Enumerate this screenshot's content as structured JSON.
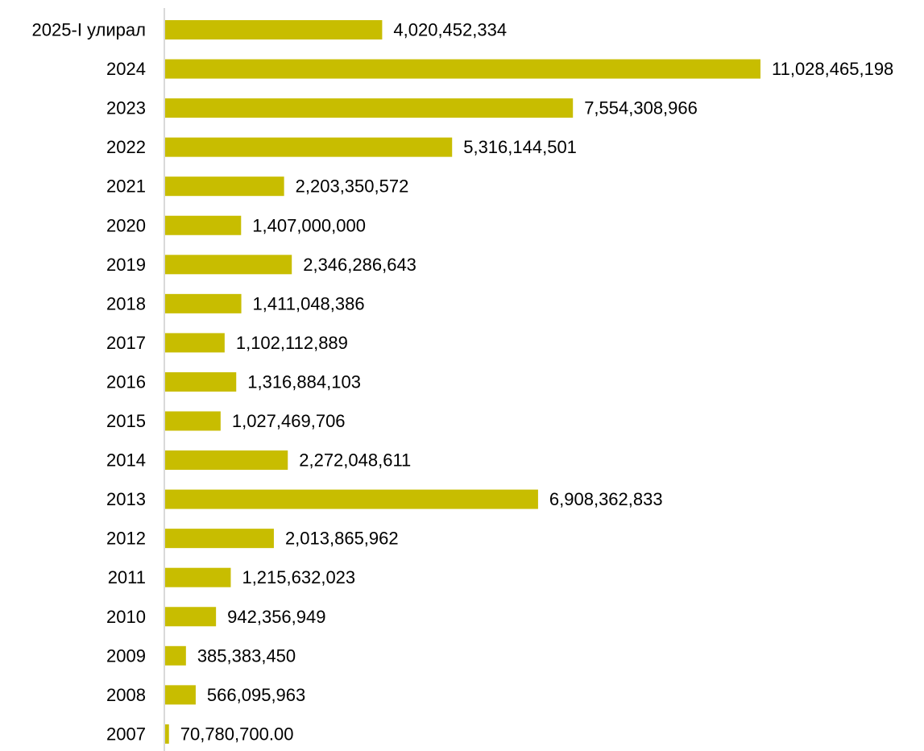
{
  "chart_data": {
    "type": "bar",
    "orientation": "horizontal",
    "title": "",
    "xlabel": "",
    "ylabel": "",
    "grid": false,
    "legend": "none",
    "bar_color": "#c8bd00",
    "axis_color": "#d9d9d9",
    "categories": [
      "2025-I улирал",
      "2024",
      "2023",
      "2022",
      "2021",
      "2020",
      "2019",
      "2018",
      "2017",
      "2016",
      "2015",
      "2014",
      "2013",
      "2012",
      "2011",
      "2010",
      "2009",
      "2008",
      "2007"
    ],
    "values": [
      4020452334,
      11028465198,
      7554308966,
      5316144501,
      2203350572,
      1407000000,
      2346286643,
      1411048386,
      1102112889,
      1316884103,
      1027469706,
      2272048611,
      6908362833,
      2013865962,
      1215632023,
      942356949,
      385383450,
      566095963,
      70780700
    ],
    "value_labels": [
      "4,020,452,334",
      "11,028,465,198",
      "7,554,308,966",
      "5,316,144,501",
      "2,203,350,572",
      "1,407,000,000",
      "2,346,286,643",
      "1,411,048,386",
      "1,102,112,889",
      "1,316,884,103",
      "1,027,469,706",
      "2,272,048,611",
      "6,908,362,833",
      "2,013,865,962",
      "1,215,632,023",
      "942,356,949",
      "385,383,450",
      "566,095,963",
      "70,780,700.00"
    ]
  }
}
